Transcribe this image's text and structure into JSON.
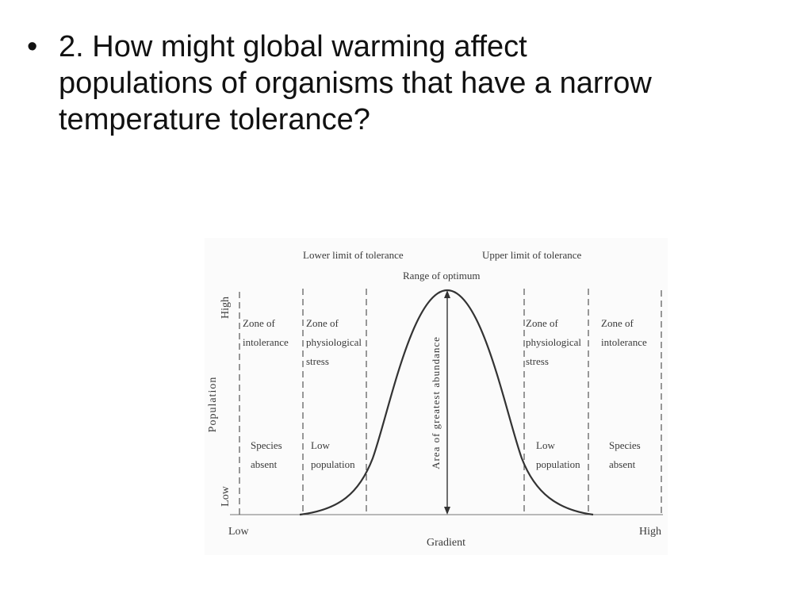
{
  "slide": {
    "bullet": "•",
    "question": "2.  How might global warming affect populations of organisms that have a narrow temperature tolerance?"
  },
  "diagram": {
    "top_labels": {
      "lower_limit": "Lower limit of tolerance",
      "upper_limit": "Upper limit of tolerance",
      "optimum": "Range of optimum"
    },
    "y_axis": {
      "title": "Population",
      "high": "High",
      "low": "Low"
    },
    "x_axis": {
      "title": "Gradient",
      "low": "Low",
      "high": "High"
    },
    "center_label": "Area of greatest abundance",
    "zones": {
      "left_intolerance": [
        "Zone of",
        "intolerance"
      ],
      "left_stress": [
        "Zone of",
        "physiological",
        "stress"
      ],
      "right_stress": [
        "Zone of",
        "physiological",
        "stress"
      ],
      "right_intolerance": [
        "Zone of",
        "intolerance"
      ]
    },
    "bottom_notes": {
      "left_absent": [
        "Species",
        "absent"
      ],
      "left_low": [
        "Low",
        "population"
      ],
      "right_low": [
        "Low",
        "population"
      ],
      "right_absent": [
        "Species",
        "absent"
      ]
    }
  }
}
